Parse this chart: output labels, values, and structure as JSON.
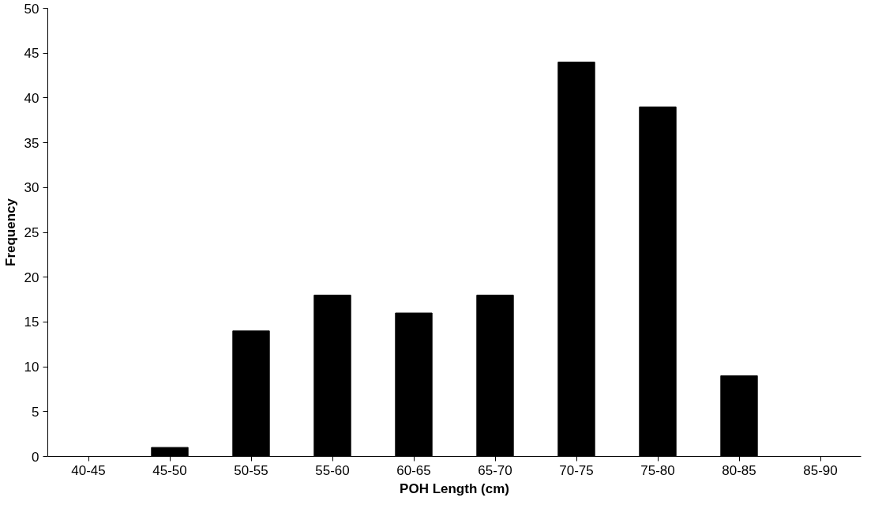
{
  "chart_data": {
    "type": "bar",
    "xlabel": "POH Length (cm)",
    "ylabel": "Frequency",
    "categories": [
      "40-45",
      "45-50",
      "50-55",
      "55-60",
      "60-65",
      "65-70",
      "70-75",
      "75-80",
      "80-85",
      "85-90"
    ],
    "values": [
      0,
      1,
      14,
      18,
      16,
      18,
      44,
      39,
      9,
      0
    ],
    "color": "#000000",
    "ylim": [
      0,
      50
    ],
    "yticks": [
      0,
      5,
      10,
      15,
      20,
      25,
      30,
      35,
      40,
      45,
      50
    ],
    "grid": false
  }
}
